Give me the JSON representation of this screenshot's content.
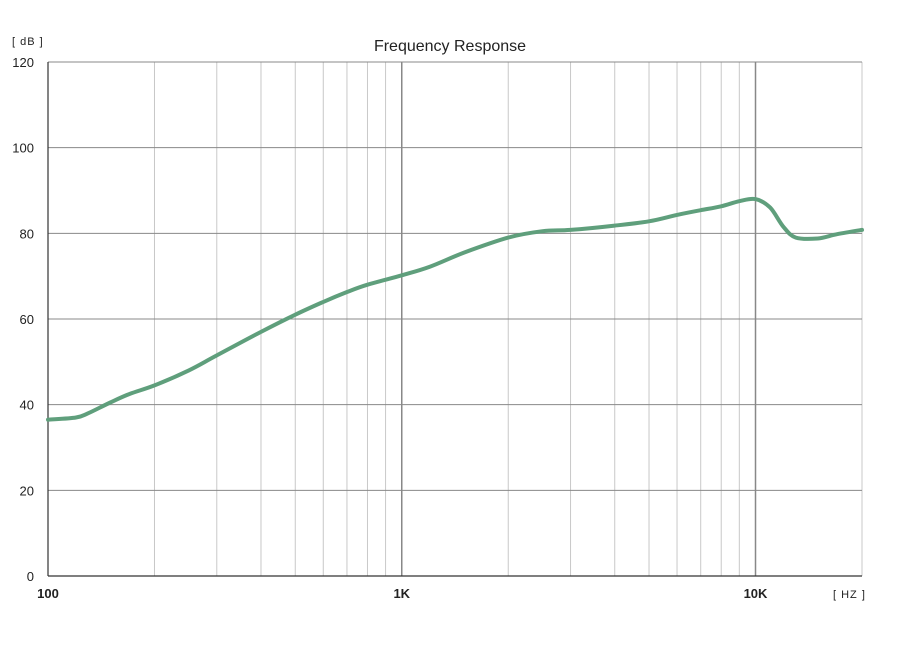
{
  "chart_data": {
    "type": "line",
    "title": "Frequency Response",
    "y_unit_label": "[ dB ]",
    "x_unit_label": "[ HZ ]",
    "x_scale": "log",
    "xlim": [
      100,
      20000
    ],
    "ylim": [
      0,
      120
    ],
    "y_ticks": [
      0,
      20,
      40,
      60,
      80,
      100,
      120
    ],
    "x_tick_labels": [
      {
        "value": 100,
        "label": "100"
      },
      {
        "value": 1000,
        "label": "1K"
      },
      {
        "value": 10000,
        "label": "10K"
      }
    ],
    "grid": true,
    "colors": {
      "series": "#5f9f7c",
      "major_grid": "#888888",
      "minor_grid": "#c8c8c8",
      "axis": "#333333"
    },
    "series": [
      {
        "x": [
          100,
          120,
          130,
          150,
          170,
          200,
          250,
          300,
          400,
          500,
          600,
          700,
          800,
          1000,
          1200,
          1500,
          2000,
          2500,
          3000,
          4000,
          5000,
          6000,
          7000,
          8000,
          9000,
          10000,
          11000,
          12000,
          13000,
          15000,
          17000,
          20000
        ],
        "y": [
          36.5,
          37,
          38,
          40.5,
          42.5,
          44.5,
          48,
          51.5,
          57,
          61,
          64,
          66.3,
          68,
          70.2,
          72.2,
          75.5,
          79,
          80.5,
          80.8,
          81.8,
          82.8,
          84.3,
          85.4,
          86.3,
          87.5,
          88,
          86,
          81.5,
          79,
          78.8,
          79.8,
          80.8
        ]
      }
    ]
  }
}
